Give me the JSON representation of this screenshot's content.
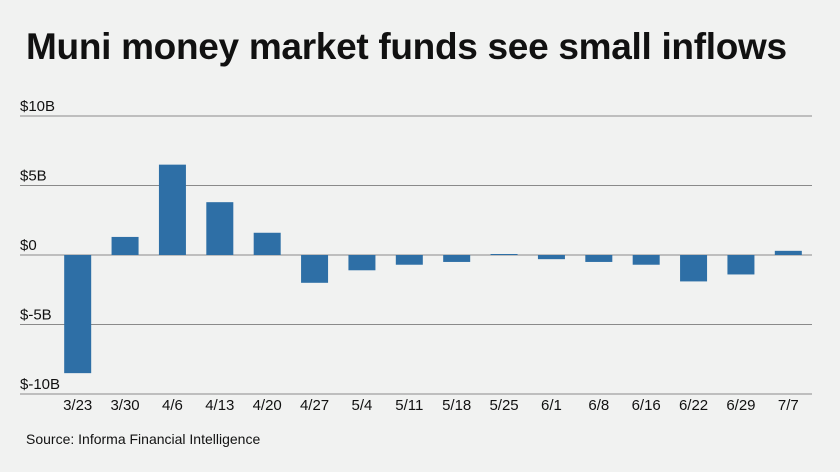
{
  "header": {
    "title": "Muni money market funds see small inflows"
  },
  "footer": {
    "source": "Source: Informa Financial Intelligence"
  },
  "chart_data": {
    "type": "bar",
    "title": "Muni money market funds see small inflows",
    "xlabel": "",
    "ylabel": "",
    "categories": [
      "3/23",
      "3/30",
      "4/6",
      "4/13",
      "4/20",
      "4/27",
      "5/4",
      "5/11",
      "5/18",
      "5/25",
      "6/1",
      "6/8",
      "6/16",
      "6/22",
      "6/29",
      "7/7"
    ],
    "values": [
      -8.5,
      1.3,
      6.5,
      3.8,
      1.6,
      -2.0,
      -1.1,
      -0.7,
      -0.5,
      0.05,
      -0.3,
      -0.5,
      -0.7,
      -1.9,
      -1.4,
      0.3
    ],
    "y_ticks": [
      10,
      5,
      0,
      -5,
      -10
    ],
    "y_tick_labels": [
      "$10B",
      "$5B",
      "$0",
      "$-5B",
      "$-10B"
    ],
    "ylim": [
      -10,
      10
    ],
    "grid": true,
    "legend": "none",
    "bar_color": "#2e6fa6",
    "grid_color": "#8a8a8a"
  }
}
